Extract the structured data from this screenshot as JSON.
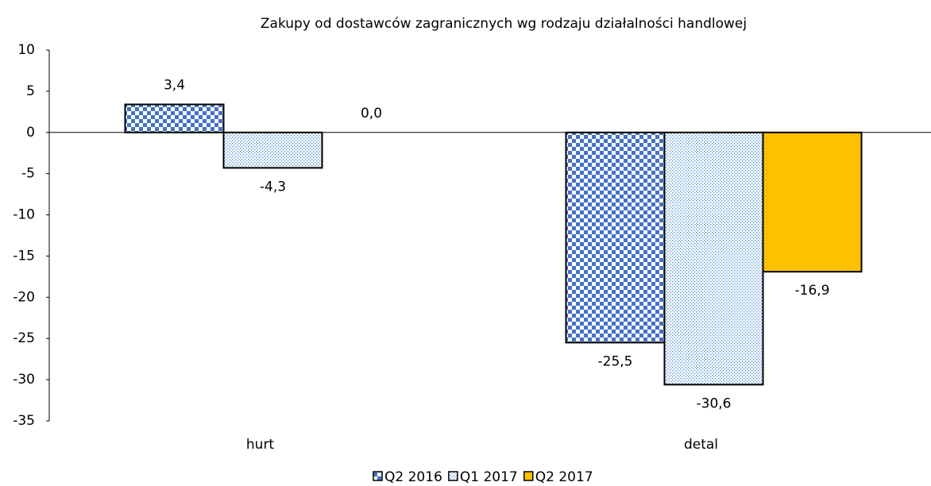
{
  "chart_data": {
    "type": "bar",
    "title": "Zakupy od dostawców zagranicznych wg rodzaju działalności handlowej",
    "categories": [
      "hurt",
      "detal"
    ],
    "series": [
      {
        "name": "Q2 2016",
        "color": "#4472c4",
        "pattern": "checker",
        "values": [
          3.4,
          -25.5
        ],
        "value_labels": [
          "3,4",
          "-25,5"
        ]
      },
      {
        "name": "Q1 2017",
        "color": "#5b9bd5",
        "pattern": "dots",
        "values": [
          -4.3,
          -30.6
        ],
        "value_labels": [
          "-4,3",
          "-30,6"
        ]
      },
      {
        "name": "Q2 2017",
        "color": "#ffc000",
        "pattern": "solid",
        "values": [
          0.0,
          -16.9
        ],
        "value_labels": [
          "0,0",
          "-16,9"
        ]
      }
    ],
    "ylim": [
      -35,
      10
    ],
    "yticks": [
      -35,
      -30,
      -25,
      -20,
      -15,
      -10,
      -5,
      0,
      5,
      10
    ],
    "legend": "bottom"
  }
}
